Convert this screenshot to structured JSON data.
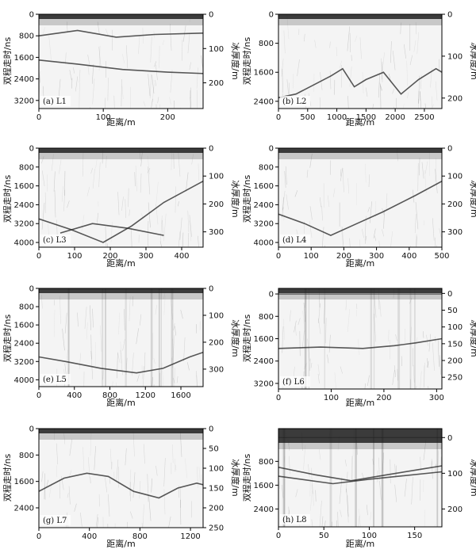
{
  "figure": {
    "left_ylabel": "双程走时/ns",
    "right_ylabel": "冰厚度/m",
    "xlabel": "距离/m"
  },
  "chart_data": [
    {
      "type": "other",
      "panel_label": "(a) L1",
      "xlabel": "距离/m",
      "ylabel": "双程走时/ns",
      "ylabel_right": "冰厚度/m",
      "xlim": [
        0,
        255
      ],
      "x_ticks": [
        0,
        100,
        200
      ],
      "ylim": [
        0,
        3500
      ],
      "y_ticks": [
        0,
        800,
        1600,
        2400,
        3200
      ],
      "y2lim": [
        0,
        275
      ],
      "y2_ticks": [
        0,
        100,
        200
      ],
      "reflectors": [
        {
          "name": "surface",
          "points": [
            [
              0,
              0
            ],
            [
              255,
              0
            ]
          ]
        },
        {
          "name": "band",
          "points": [
            [
              0,
              800
            ],
            [
              60,
              600
            ],
            [
              120,
              850
            ],
            [
              180,
              750
            ],
            [
              255,
              700
            ]
          ]
        },
        {
          "name": "bed",
          "points": [
            [
              0,
              1700
            ],
            [
              60,
              1850
            ],
            [
              130,
              2050
            ],
            [
              200,
              2150
            ],
            [
              255,
              2200
            ]
          ]
        }
      ]
    },
    {
      "type": "other",
      "panel_label": "(b) L2",
      "xlabel": "距离/m",
      "ylabel": "双程走时/ns",
      "ylabel_right": "冰厚度/m",
      "xlim": [
        0,
        2800
      ],
      "x_ticks": [
        0,
        500,
        1000,
        1500,
        2000,
        2500
      ],
      "ylim": [
        0,
        2600
      ],
      "y_ticks": [
        0,
        800,
        1600,
        2400
      ],
      "y2lim": [
        0,
        225
      ],
      "y2_ticks": [
        0,
        100,
        200
      ],
      "reflectors": [
        {
          "name": "surface",
          "points": [
            [
              0,
              0
            ],
            [
              2800,
              0
            ]
          ]
        },
        {
          "name": "bed",
          "points": [
            [
              0,
              2300
            ],
            [
              300,
              2200
            ],
            [
              600,
              1950
            ],
            [
              900,
              1700
            ],
            [
              1100,
              1500
            ],
            [
              1300,
              2000
            ],
            [
              1500,
              1800
            ],
            [
              1800,
              1600
            ],
            [
              2100,
              2200
            ],
            [
              2400,
              1800
            ],
            [
              2700,
              1500
            ],
            [
              2800,
              1600
            ]
          ]
        }
      ]
    },
    {
      "type": "other",
      "panel_label": "(c) L3",
      "xlabel": "距离/m",
      "ylabel": "双程走时/ns",
      "ylabel_right": "冰厚度/m",
      "xlim": [
        0,
        460
      ],
      "x_ticks": [
        0,
        100,
        200,
        300,
        400
      ],
      "ylim": [
        0,
        4200
      ],
      "y_ticks": [
        0,
        800,
        1600,
        2400,
        3200,
        4000
      ],
      "y2lim": [
        0,
        355
      ],
      "y2_ticks": [
        0,
        100,
        200,
        300
      ],
      "reflectors": [
        {
          "name": "surface",
          "points": [
            [
              0,
              0
            ],
            [
              460,
              0
            ]
          ]
        },
        {
          "name": "bed",
          "points": [
            [
              0,
              3000
            ],
            [
              90,
              3450
            ],
            [
              180,
              4000
            ],
            [
              260,
              3300
            ],
            [
              350,
              2300
            ],
            [
              460,
              1400
            ]
          ]
        },
        {
          "name": "bed-2",
          "points": [
            [
              60,
              3600
            ],
            [
              150,
              3200
            ],
            [
              250,
              3400
            ],
            [
              350,
              3700
            ]
          ]
        }
      ]
    },
    {
      "type": "other",
      "panel_label": "(d) L4",
      "xlabel": "距离/m",
      "ylabel": "双程走时/ns",
      "ylabel_right": "冰厚度/m",
      "xlim": [
        0,
        500
      ],
      "x_ticks": [
        0,
        100,
        200,
        300,
        400,
        500
      ],
      "ylim": [
        0,
        4200
      ],
      "y_ticks": [
        0,
        800,
        1600,
        2400,
        3200,
        4000
      ],
      "y2lim": [
        0,
        355
      ],
      "y2_ticks": [
        0,
        100,
        200,
        300
      ],
      "reflectors": [
        {
          "name": "surface",
          "points": [
            [
              0,
              0
            ],
            [
              500,
              0
            ]
          ]
        },
        {
          "name": "bed",
          "points": [
            [
              0,
              2800
            ],
            [
              80,
              3200
            ],
            [
              160,
              3700
            ],
            [
              240,
              3200
            ],
            [
              320,
              2700
            ],
            [
              420,
              2000
            ],
            [
              500,
              1400
            ]
          ]
        }
      ]
    },
    {
      "type": "other",
      "panel_label": "(e) L5",
      "xlabel": "距离/m",
      "ylabel": "双程走时/ns",
      "ylabel_right": "冰厚度/m",
      "xlim": [
        0,
        1850
      ],
      "x_ticks": [
        0,
        400,
        800,
        1200,
        1600
      ],
      "ylim": [
        0,
        4300
      ],
      "y_ticks": [
        0,
        800,
        1600,
        2400,
        3200,
        4000
      ],
      "y2lim": [
        0,
        365
      ],
      "y2_ticks": [
        0,
        100,
        200,
        300
      ],
      "reflectors": [
        {
          "name": "surface",
          "points": [
            [
              0,
              0
            ],
            [
              1850,
              0
            ]
          ]
        },
        {
          "name": "bed",
          "points": [
            [
              0,
              3000
            ],
            [
              300,
              3200
            ],
            [
              700,
              3500
            ],
            [
              1100,
              3700
            ],
            [
              1400,
              3500
            ],
            [
              1700,
              3000
            ],
            [
              1850,
              2800
            ]
          ]
        }
      ]
    },
    {
      "type": "other",
      "panel_label": "(f) L6",
      "xlabel": "距离/m",
      "ylabel": "双程走时/ns",
      "ylabel_right": "冰厚度/m",
      "xlim": [
        0,
        310
      ],
      "x_ticks": [
        0,
        100,
        200,
        300
      ],
      "ylim": [
        -200,
        3400
      ],
      "y_ticks": [
        0,
        800,
        1600,
        2400,
        3200
      ],
      "y2lim": [
        -15,
        285
      ],
      "y2_ticks": [
        0,
        50,
        100,
        150,
        200,
        250
      ],
      "reflectors": [
        {
          "name": "surface",
          "points": [
            [
              0,
              0
            ],
            [
              310,
              0
            ]
          ]
        },
        {
          "name": "bed",
          "points": [
            [
              0,
              1950
            ],
            [
              80,
              1900
            ],
            [
              160,
              1950
            ],
            [
              220,
              1850
            ],
            [
              260,
              1750
            ],
            [
              310,
              1600
            ]
          ]
        }
      ]
    },
    {
      "type": "other",
      "panel_label": "(g) L7",
      "xlabel": "距离/m",
      "ylabel": "双程走时/ns",
      "ylabel_right": "冰厚度/m",
      "xlim": [
        0,
        1300
      ],
      "x_ticks": [
        0,
        400,
        800,
        1200
      ],
      "ylim": [
        0,
        3000
      ],
      "y_ticks": [
        0,
        800,
        1600,
        2400
      ],
      "y2lim": [
        0,
        250
      ],
      "y2_ticks": [
        0,
        50,
        100,
        150,
        200,
        250
      ],
      "reflectors": [
        {
          "name": "surface",
          "points": [
            [
              0,
              0
            ],
            [
              1300,
              0
            ]
          ]
        },
        {
          "name": "bed",
          "points": [
            [
              0,
              1900
            ],
            [
              200,
              1500
            ],
            [
              380,
              1350
            ],
            [
              550,
              1450
            ],
            [
              750,
              1900
            ],
            [
              950,
              2100
            ],
            [
              1100,
              1800
            ],
            [
              1250,
              1650
            ],
            [
              1300,
              1700
            ]
          ]
        }
      ]
    },
    {
      "type": "other",
      "panel_label": "(h) L8",
      "xlabel": "距离/m",
      "ylabel": "双程走时/ns",
      "ylabel_right": "冰厚度/m",
      "xlim": [
        0,
        180
      ],
      "x_ticks": [
        0,
        50,
        100,
        150
      ],
      "ylim": [
        -300,
        3000
      ],
      "y_ticks": [
        800,
        1600,
        2400
      ],
      "y2lim": [
        -25,
        250
      ],
      "y2_ticks": [
        0,
        100,
        200
      ],
      "reflectors": [
        {
          "name": "surface",
          "points": [
            [
              0,
              0
            ],
            [
              180,
              0
            ]
          ]
        },
        {
          "name": "bed",
          "points": [
            [
              0,
              1000
            ],
            [
              40,
              1250
            ],
            [
              80,
              1450
            ],
            [
              120,
              1250
            ],
            [
              160,
              1050
            ],
            [
              180,
              950
            ]
          ]
        },
        {
          "name": "bed-2",
          "points": [
            [
              0,
              1300
            ],
            [
              60,
              1550
            ],
            [
              100,
              1400
            ],
            [
              180,
              1150
            ]
          ]
        }
      ]
    }
  ]
}
